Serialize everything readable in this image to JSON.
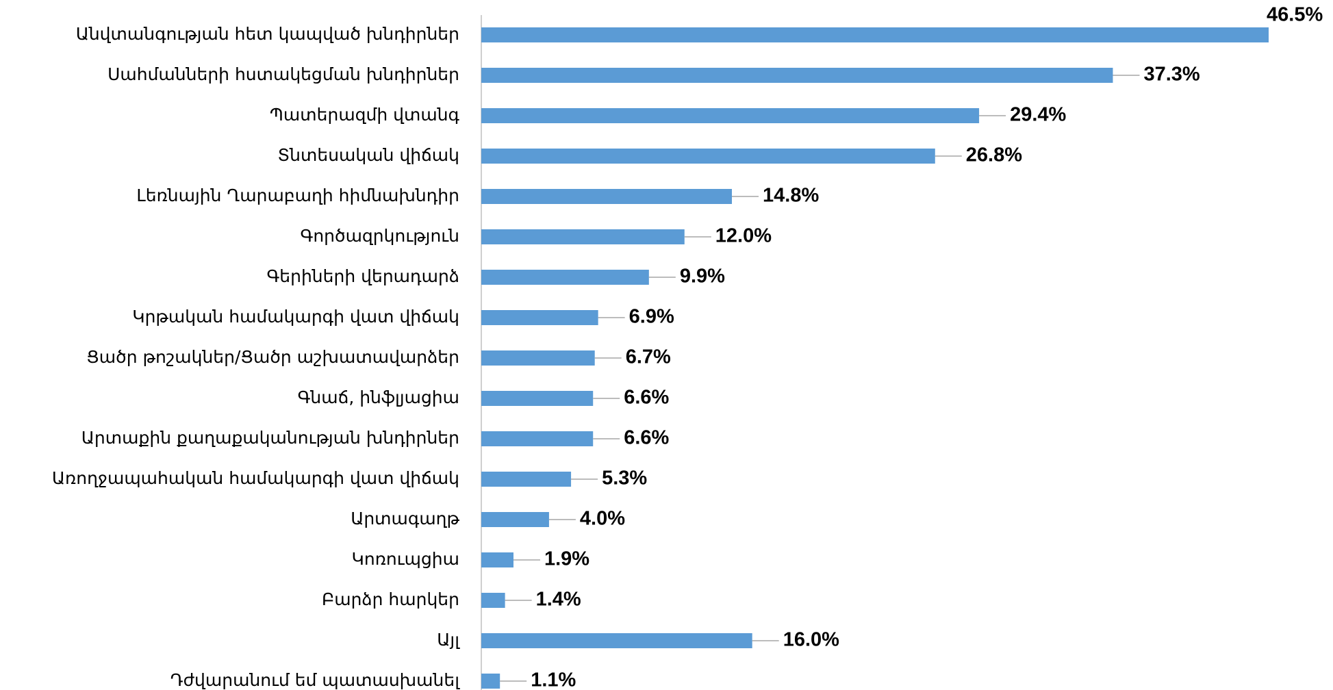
{
  "chart_data": {
    "type": "bar",
    "orientation": "horizontal",
    "color": "#5b9bd5",
    "categories": [
      "Անվտանգության հետ կապված խնդիրներ",
      "Սահմանների հստակեցման խնդիրներ",
      "Պատերազմի վտանգ",
      "Տնտեսական վիճակ",
      "Լեռնային Ղարաբաղի հիմնախնդիր",
      "Գործազրկություն",
      "Գերիների վերադարձ",
      "Կրթական համակարգի վատ վիճակ",
      "Ցածր թոշակներ/Ցածր աշխատավարձեր",
      "Գնաճ, ինֆլյացիա",
      "Արտաքին քաղաքականության խնդիրներ",
      "Առողջապահական համակարգի վատ վիճակ",
      "Արտագաղթ",
      "Կոռուպցիա",
      "Բարձր հարկեր",
      "Այլ",
      "Դժվարանում եմ պատասխանել"
    ],
    "values": [
      46.5,
      37.3,
      29.4,
      26.8,
      14.8,
      12.0,
      9.9,
      6.9,
      6.7,
      6.6,
      6.6,
      5.3,
      4.0,
      1.9,
      1.4,
      16.0,
      1.1
    ],
    "value_labels": [
      "46.5%",
      "37.3%",
      "29.4%",
      "26.8%",
      "14.8%",
      "12.0%",
      "9.9%",
      "6.9%",
      "6.7%",
      "6.6%",
      "6.6%",
      "5.3%",
      "4.0%",
      "1.9%",
      "1.4%",
      "16.0%",
      "1.1%"
    ]
  }
}
